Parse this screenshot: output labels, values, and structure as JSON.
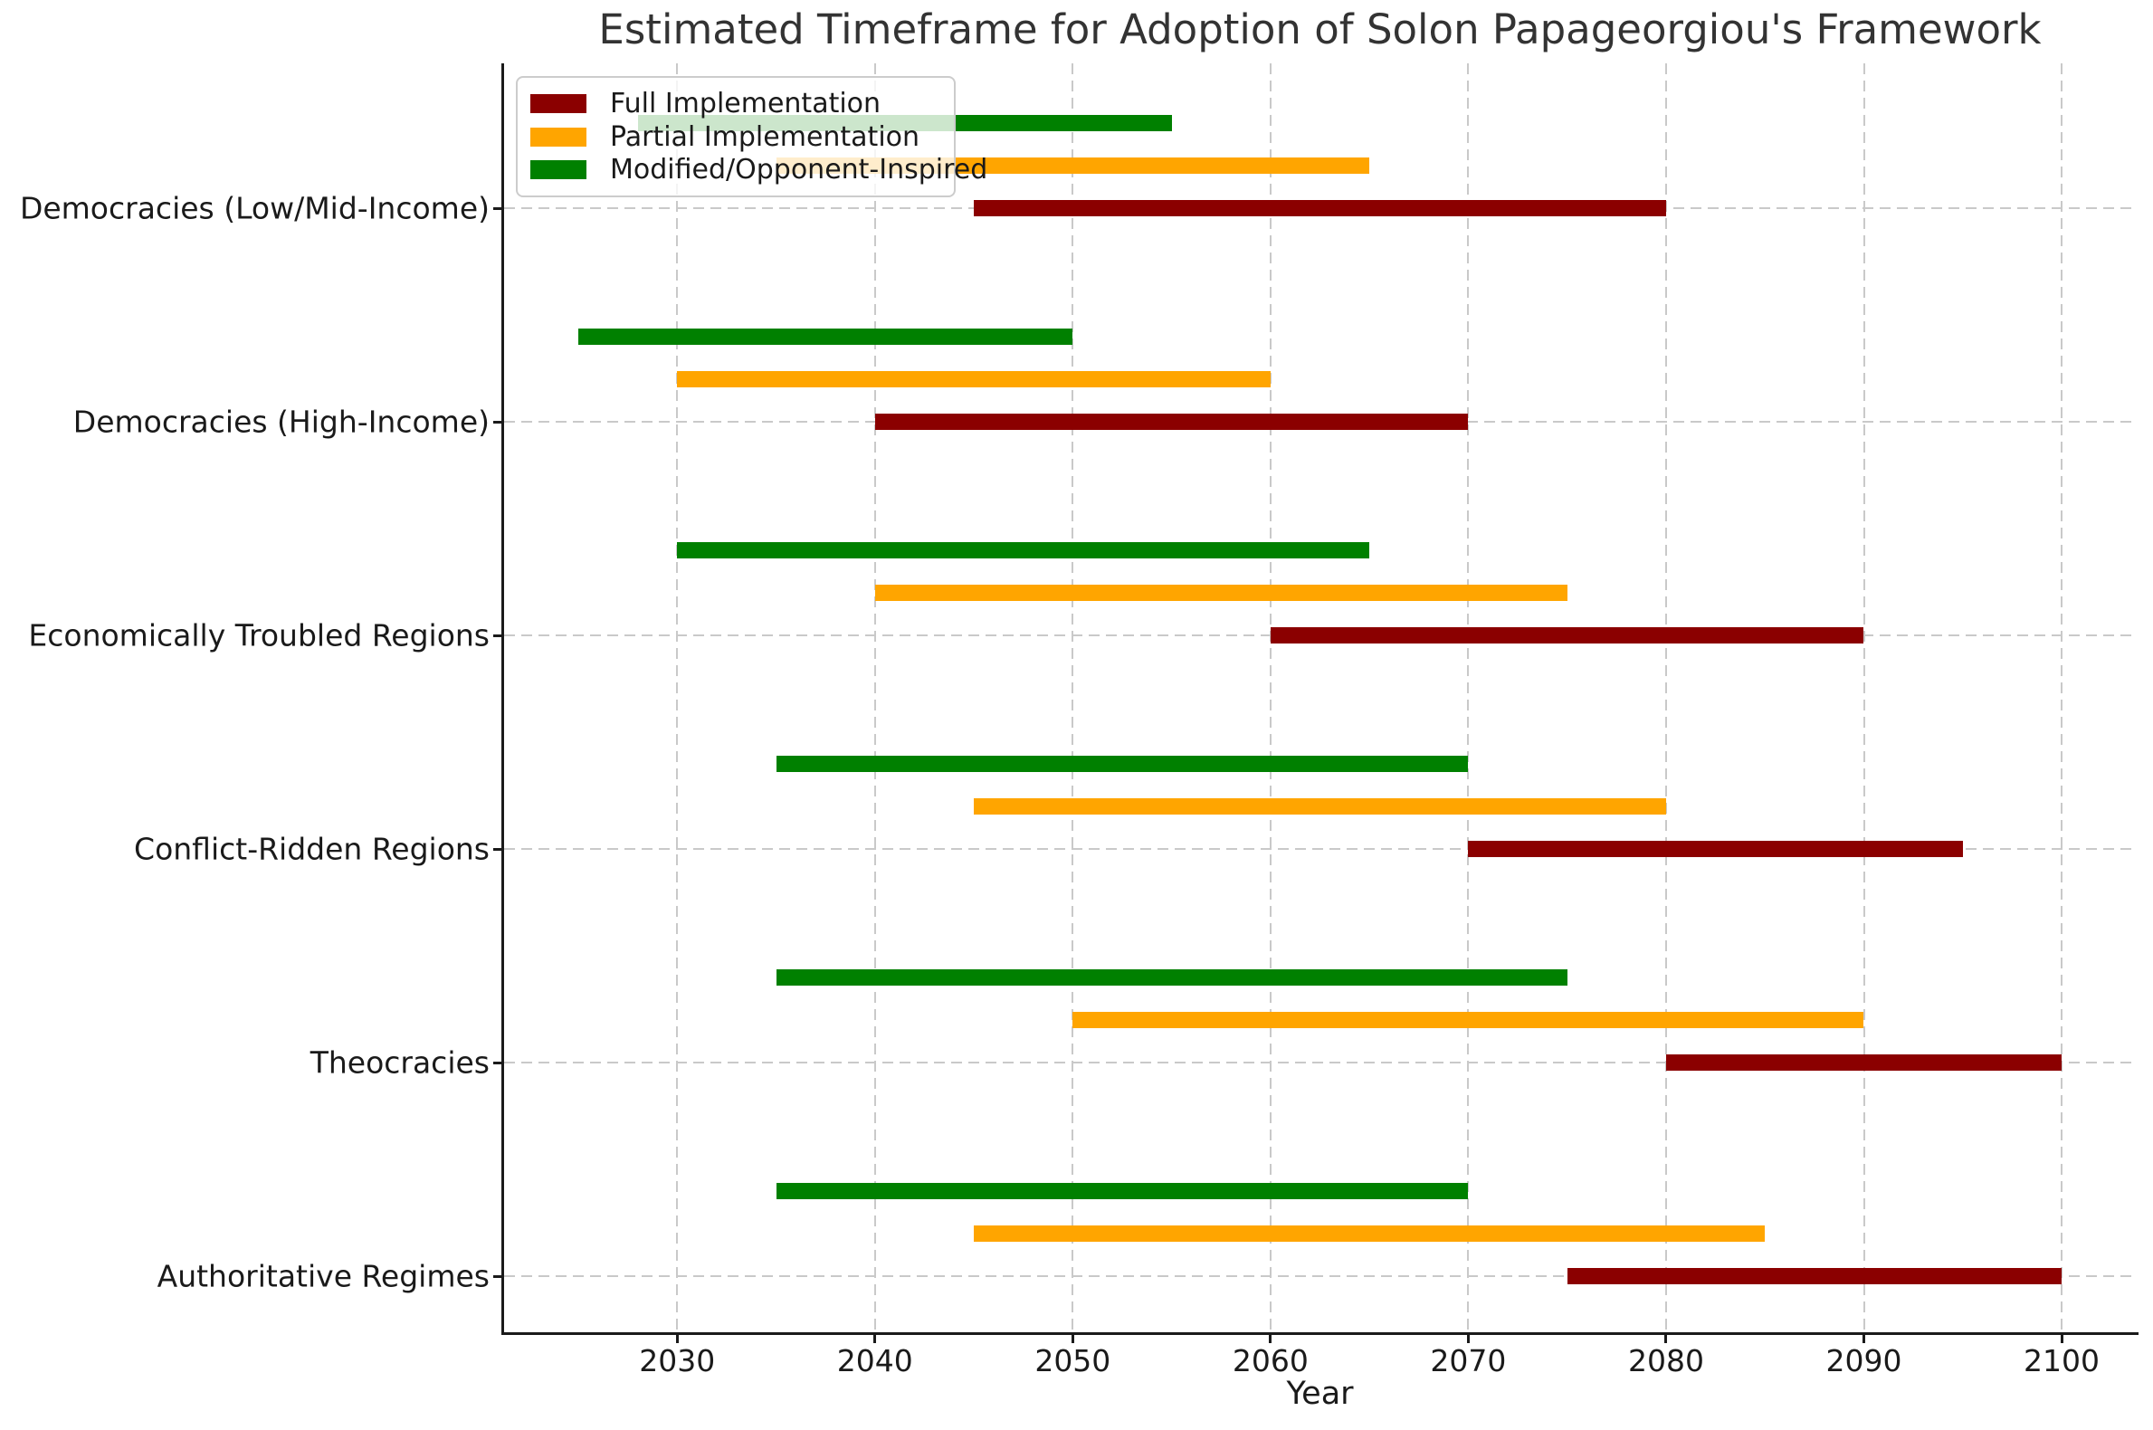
{
  "title": "Estimated Timeframe for Adoption of Solon Papageorgiou's Framework",
  "axes": {
    "xlabel": "Year",
    "x_ticks": [
      2030,
      2040,
      2050,
      2060,
      2070,
      2080,
      2090,
      2100
    ],
    "xlim": [
      2021.25,
      2103.75
    ]
  },
  "legend": {
    "items": [
      {
        "label": "Full Implementation",
        "color": "#8B0000"
      },
      {
        "label": "Partial Implementation",
        "color": "#FFA500"
      },
      {
        "label": "Modified/Opponent-Inspired",
        "color": "#008000"
      }
    ]
  },
  "chart_data": {
    "type": "bar",
    "subtype": "horizontal-range-gantt",
    "title": "Estimated Timeframe for Adoption of Solon Papageorgiou's Framework",
    "xlabel": "Year",
    "xlim": [
      2021.25,
      2103.75
    ],
    "x_ticks": [
      2030,
      2040,
      2050,
      2060,
      2070,
      2080,
      2090,
      2100
    ],
    "grid": "dashed-both-axes",
    "legend_position": "upper-left",
    "categories_top_to_bottom": [
      "Democracies (Low/Mid-Income)",
      "Democracies (High-Income)",
      "Economically Troubled Regions",
      "Conflict-Ridden Regions",
      "Theocracies",
      "Authoritative Regimes"
    ],
    "series": [
      {
        "name": "Full Implementation",
        "color": "#8B0000",
        "ranges_by_category": [
          [
            2045,
            2080
          ],
          [
            2040,
            2070
          ],
          [
            2060,
            2090
          ],
          [
            2070,
            2095
          ],
          [
            2080,
            2100
          ],
          [
            2075,
            2100
          ]
        ]
      },
      {
        "name": "Partial Implementation",
        "color": "#FFA500",
        "ranges_by_category": [
          [
            2035,
            2065
          ],
          [
            2030,
            2060
          ],
          [
            2040,
            2075
          ],
          [
            2045,
            2080
          ],
          [
            2050,
            2090
          ],
          [
            2045,
            2085
          ]
        ]
      },
      {
        "name": "Modified/Opponent-Inspired",
        "color": "#008000",
        "ranges_by_category": [
          [
            2028,
            2055
          ],
          [
            2025,
            2050
          ],
          [
            2030,
            2065
          ],
          [
            2035,
            2070
          ],
          [
            2035,
            2075
          ],
          [
            2035,
            2070
          ]
        ]
      }
    ]
  }
}
